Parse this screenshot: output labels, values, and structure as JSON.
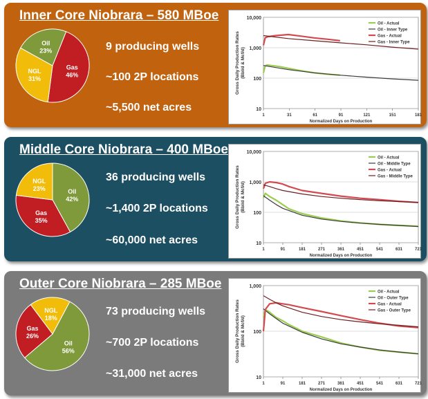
{
  "colors": {
    "inner_bg": "#c0620e",
    "middle_bg": "#1d4f62",
    "outer_bg": "#7b7b7b",
    "oil": "#7f9a3a",
    "gas": "#c01e22",
    "ngl": "#f2bc0a",
    "oil_line": "#9acd4f",
    "oil_type_line": "#3b3b3b",
    "gas_line": "#d24a4d",
    "gas_type_line": "#6b1e20"
  },
  "panels": [
    {
      "title": "Inner Core Niobrara – 580 MBoe",
      "wells": "9 producing wells",
      "locations": "~100 2P locations",
      "acres": "~5,500 net acres",
      "pie": [
        {
          "name": "Oil",
          "pct": "23%",
          "value": 23
        },
        {
          "name": "Gas",
          "pct": "46%",
          "value": 46
        },
        {
          "name": "NGL",
          "pct": "31%",
          "value": 31
        }
      ]
    },
    {
      "title": "Middle Core Niobrara – 400 MBoe",
      "wells": "36 producing wells",
      "locations": "~1,400 2P locations",
      "acres": "~60,000 net acres",
      "pie": [
        {
          "name": "Oil",
          "pct": "42%",
          "value": 42
        },
        {
          "name": "Gas",
          "pct": "35%",
          "value": 35
        },
        {
          "name": "NGL",
          "pct": "23%",
          "value": 23
        }
      ]
    },
    {
      "title": "Outer Core Niobrara – 285 MBoe",
      "wells": "73 producing wells",
      "locations": "~700 2P locations",
      "acres": "~31,000 net acres",
      "pie": [
        {
          "name": "Oil",
          "pct": "56%",
          "value": 56
        },
        {
          "name": "Gas",
          "pct": "26%",
          "value": 26
        },
        {
          "name": "NGL",
          "pct": "18%",
          "value": 18
        }
      ]
    }
  ],
  "chart_data": [
    {
      "type": "line",
      "ylabel": "Gross Daily Production Rates (Bbl/d & Mcf/d)",
      "xlabel": "Normalized Days on Production",
      "yscale": "log",
      "ylim": [
        10,
        10000
      ],
      "yticks": [
        "10",
        "100",
        "1,000",
        "10,000"
      ],
      "xlim": [
        1,
        181
      ],
      "xticks": [
        "1",
        "31",
        "61",
        "91",
        "121",
        "151",
        "181"
      ],
      "grid": true,
      "legend_position": "top-right",
      "series": [
        {
          "name": "Oil - Actual",
          "style": "actual",
          "color": "#9acd4f",
          "x": [
            1,
            3,
            5,
            10,
            20,
            30,
            45,
            60,
            75,
            90
          ],
          "y": [
            150,
            250,
            270,
            260,
            240,
            210,
            175,
            150,
            135,
            125
          ]
        },
        {
          "name": "Oil - Inner Type",
          "style": "type",
          "color": "#3b3b3b",
          "x": [
            1,
            30,
            60,
            90,
            120,
            150,
            181
          ],
          "y": [
            260,
            190,
            150,
            125,
            108,
            95,
            85
          ]
        },
        {
          "name": "Gas - Actual",
          "style": "actual",
          "color": "#d24a4d",
          "x": [
            1,
            3,
            6,
            15,
            30,
            45,
            60,
            75,
            90
          ],
          "y": [
            1200,
            2100,
            2300,
            2500,
            2700,
            2400,
            2100,
            1900,
            1700
          ]
        },
        {
          "name": "Gas - Inner Type",
          "style": "type",
          "color": "#6b1e20",
          "x": [
            1,
            30,
            60,
            90,
            120,
            150,
            181
          ],
          "y": [
            2500,
            2000,
            1700,
            1450,
            1250,
            1050,
            900
          ]
        }
      ]
    },
    {
      "type": "line",
      "ylabel": "Gross Daily Production Rates (Bbl/d & Mcf/d)",
      "xlabel": "Normalized Days on Production",
      "yscale": "log",
      "ylim": [
        10,
        10000
      ],
      "yticks": [
        "10",
        "100",
        "1,000",
        "10,000"
      ],
      "xlim": [
        1,
        721
      ],
      "xticks": [
        "1",
        "91",
        "181",
        "271",
        "361",
        "451",
        "541",
        "631",
        "721"
      ],
      "grid": true,
      "legend_position": "top-right",
      "series": [
        {
          "name": "Oil - Actual",
          "style": "actual",
          "color": "#9acd4f",
          "x": [
            1,
            10,
            30,
            60,
            90,
            120,
            181,
            271,
            361,
            451,
            541,
            631,
            721
          ],
          "y": [
            300,
            420,
            330,
            250,
            180,
            130,
            90,
            65,
            52,
            45,
            40,
            37,
            35
          ]
        },
        {
          "name": "Oil - Middle Type",
          "style": "type",
          "color": "#3b3b3b",
          "x": [
            1,
            30,
            60,
            91,
            181,
            271,
            361,
            451,
            541,
            631,
            721
          ],
          "y": [
            350,
            250,
            180,
            135,
            80,
            60,
            50,
            44,
            40,
            37,
            34
          ]
        },
        {
          "name": "Gas - Actual",
          "style": "actual",
          "color": "#d24a4d",
          "x": [
            1,
            10,
            30,
            60,
            90,
            120,
            181,
            271,
            361,
            451,
            541,
            631,
            721
          ],
          "y": [
            600,
            900,
            1000,
            950,
            850,
            700,
            520,
            420,
            340,
            290,
            260,
            230,
            210
          ]
        },
        {
          "name": "Gas - Middle Type",
          "style": "type",
          "color": "#6b1e20",
          "x": [
            1,
            30,
            60,
            91,
            181,
            271,
            361,
            451,
            541,
            631,
            721
          ],
          "y": [
            800,
            700,
            600,
            520,
            400,
            330,
            290,
            260,
            240,
            225,
            210
          ]
        }
      ]
    },
    {
      "type": "line",
      "ylabel": "Gross Daily Production Rates (Bbl/d & Mcf/d)",
      "xlabel": "Normalized Days on Production",
      "yscale": "log",
      "ylim": [
        10,
        1000
      ],
      "yticks": [
        "10",
        "100",
        "1,000"
      ],
      "xlim": [
        1,
        721
      ],
      "xticks": [
        "1",
        "91",
        "181",
        "271",
        "361",
        "451",
        "541",
        "631",
        "721"
      ],
      "grid": true,
      "legend_position": "top-right",
      "series": [
        {
          "name": "Oil - Actual",
          "style": "actual",
          "color": "#9acd4f",
          "x": [
            1,
            10,
            30,
            60,
            90,
            120,
            181,
            271,
            361,
            451,
            541,
            631,
            721
          ],
          "y": [
            200,
            300,
            260,
            200,
            170,
            140,
            100,
            75,
            55,
            45,
            38,
            35,
            32
          ]
        },
        {
          "name": "Oil - Outer Type",
          "style": "type",
          "color": "#3b3b3b",
          "x": [
            1,
            30,
            60,
            91,
            181,
            271,
            361,
            451,
            541,
            631,
            721
          ],
          "y": [
            310,
            240,
            190,
            150,
            95,
            68,
            53,
            45,
            39,
            35,
            32
          ]
        },
        {
          "name": "Gas - Actual",
          "style": "actual",
          "color": "#d24a4d",
          "x": [
            1,
            10,
            30,
            60,
            90,
            120,
            181,
            271,
            361,
            451,
            541,
            631,
            721
          ],
          "y": [
            100,
            300,
            400,
            420,
            400,
            380,
            330,
            270,
            220,
            180,
            150,
            130,
            120
          ]
        },
        {
          "name": "Gas - Outer Type",
          "style": "type",
          "color": "#6b1e20",
          "x": [
            1,
            30,
            60,
            91,
            181,
            271,
            361,
            451,
            541,
            631,
            721
          ],
          "y": [
            600,
            500,
            420,
            360,
            260,
            210,
            180,
            160,
            145,
            135,
            125
          ]
        }
      ]
    }
  ]
}
